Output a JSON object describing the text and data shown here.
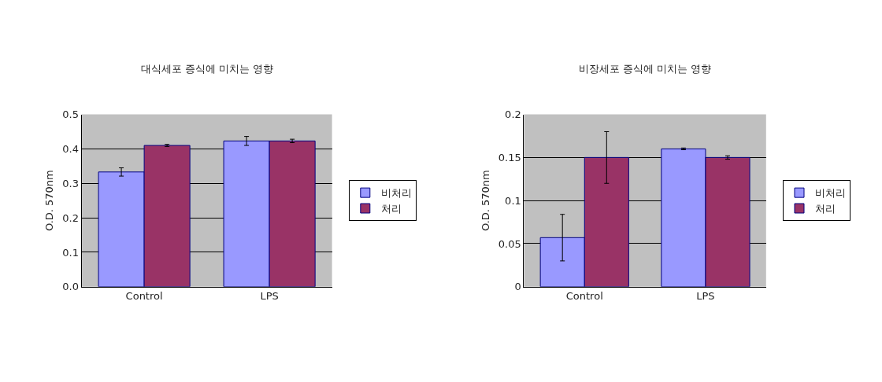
{
  "chart_data": [
    {
      "type": "bar",
      "title": "대식세포 증식에 미치는 영향",
      "ylabel": "O.D. 570nm",
      "categories": [
        "Control",
        "LPS"
      ],
      "series": [
        {
          "name": "비처리",
          "color": "#9999ff",
          "values": [
            0.333,
            0.423
          ],
          "errors": [
            0.012,
            0.013
          ]
        },
        {
          "name": "처리",
          "color": "#993366",
          "values": [
            0.41,
            0.423
          ],
          "errors": [
            0.003,
            0.005
          ]
        }
      ],
      "ylim": [
        0,
        0.5
      ],
      "yticks": [
        {
          "value": 0,
          "label": "0.0"
        },
        0.1,
        0.2,
        0.3,
        0.4,
        0.5
      ],
      "grid": "y",
      "legend": "right"
    },
    {
      "type": "bar",
      "title": "비장세포 증식에 미치는 영향",
      "ylabel": "O.D. 570nm",
      "categories": [
        "Control",
        "LPS"
      ],
      "series": [
        {
          "name": "비처리",
          "color": "#9999ff",
          "values": [
            0.057,
            0.16
          ],
          "errors": [
            0.027,
            0.001
          ]
        },
        {
          "name": "처리",
          "color": "#993366",
          "values": [
            0.15,
            0.15
          ],
          "errors": [
            0.03,
            0.002
          ]
        }
      ],
      "ylim": [
        0,
        0.2
      ],
      "yticks": [
        0,
        0.05,
        0.1,
        0.15,
        0.2
      ],
      "grid": "y",
      "legend": "right"
    }
  ]
}
